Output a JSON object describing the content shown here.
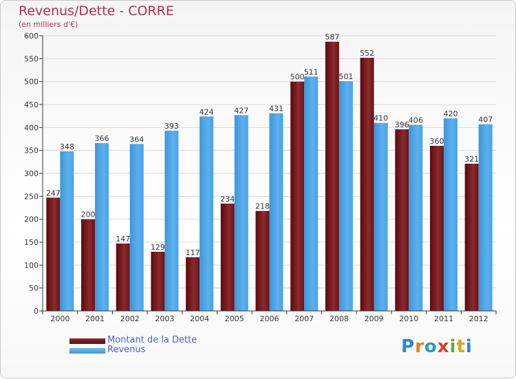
{
  "header": {
    "title": "Revenus/Dette - CORRE",
    "subtitle": "(en milliers d'€)"
  },
  "legend": {
    "items": [
      {
        "label": "Montant de la Dette",
        "color": "#7a1a1e"
      },
      {
        "label": "Revenus",
        "color": "#4aa3e6"
      }
    ]
  },
  "logo": {
    "text": "Proxiti"
  },
  "chart_data": {
    "type": "bar",
    "title": "Revenus/Dette - CORRE",
    "subtitle": "(en milliers d'€)",
    "categories": [
      "2000",
      "2001",
      "2002",
      "2003",
      "2004",
      "2005",
      "2006",
      "2007",
      "2008",
      "2009",
      "2010",
      "2011",
      "2012"
    ],
    "series": [
      {
        "name": "Montant de la Dette",
        "color": "#7a1a1e",
        "values": [
          247,
          200,
          147,
          129,
          117,
          234,
          218,
          500,
          587,
          552,
          396,
          360,
          321
        ]
      },
      {
        "name": "Revenus",
        "color": "#4aa3e6",
        "values": [
          348,
          366,
          364,
          393,
          424,
          427,
          431,
          511,
          501,
          410,
          406,
          420,
          407
        ]
      }
    ],
    "ylim": [
      0,
      600
    ],
    "yticks": [
      0,
      50,
      100,
      150,
      200,
      250,
      300,
      350,
      400,
      450,
      500,
      550,
      600
    ],
    "grid": true,
    "legend_position": "bottom-left"
  }
}
